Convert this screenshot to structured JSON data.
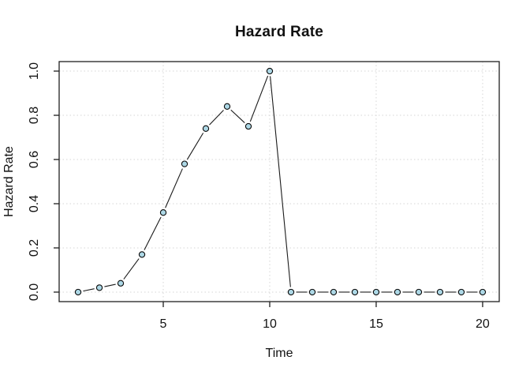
{
  "chart_data": {
    "type": "line",
    "title": "Hazard Rate",
    "xlabel": "Time",
    "ylabel": "Hazard Rate",
    "x": [
      1,
      2,
      3,
      4,
      5,
      6,
      7,
      8,
      9,
      10,
      11,
      12,
      13,
      14,
      15,
      16,
      17,
      18,
      19,
      20
    ],
    "values": [
      0.0,
      0.02,
      0.04,
      0.17,
      0.36,
      0.58,
      0.74,
      0.84,
      0.75,
      1.0,
      0.0,
      0.0,
      0.0,
      0.0,
      0.0,
      0.0,
      0.0,
      0.0,
      0.0,
      0.0
    ],
    "xticks": [
      5,
      10,
      15,
      20
    ],
    "ytick_labels": [
      "0.0",
      "0.2",
      "0.4",
      "0.6",
      "0.8",
      "1.0"
    ],
    "xlim": [
      0.11,
      20.78
    ],
    "ylim": [
      -0.043,
      1.043
    ],
    "grid": true,
    "legend": "none",
    "marker": "circle-filled",
    "line_type": "points-and-segments",
    "colors": {
      "marker_fill": "#add8e6",
      "marker_stroke": "#0a0a0a",
      "line": "#1a1a1a",
      "grid": "#d6d6d6",
      "axis": "#1f1f1f",
      "text": "#111111",
      "background": "#ffffff"
    }
  }
}
